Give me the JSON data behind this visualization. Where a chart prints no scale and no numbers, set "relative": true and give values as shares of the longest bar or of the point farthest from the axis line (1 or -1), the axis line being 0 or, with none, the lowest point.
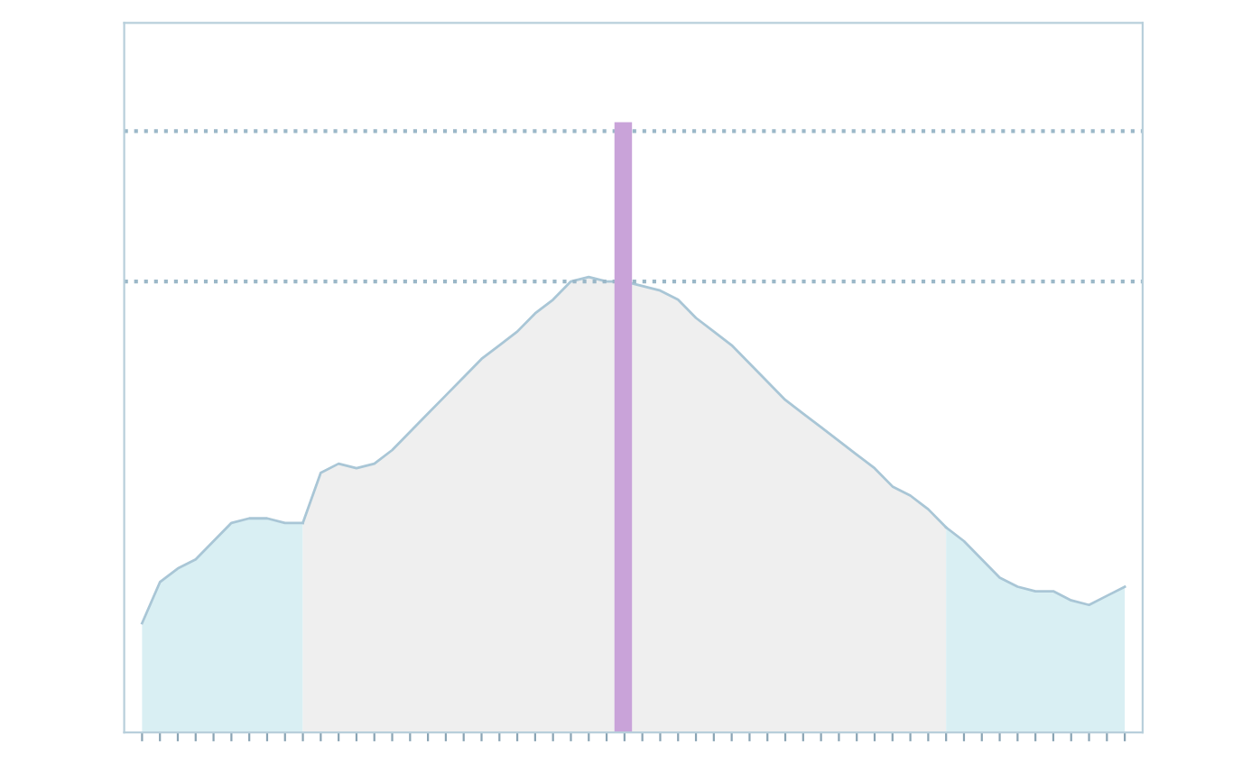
{
  "chart_data": {
    "type": "area",
    "relative": true,
    "categories": [
      null,
      null,
      null,
      null,
      null,
      null,
      null,
      null,
      null,
      null,
      null,
      null,
      null,
      null,
      null,
      null,
      null,
      null,
      null,
      null,
      null,
      null,
      null,
      null,
      null,
      null,
      null,
      null,
      null,
      null,
      null,
      null,
      null,
      null,
      null,
      null,
      null,
      null,
      null,
      null,
      null,
      null,
      null,
      null,
      null,
      null,
      null,
      null,
      null,
      null,
      null,
      null,
      null,
      null,
      null,
      null
    ],
    "series": [
      {
        "color": "#d9eff3",
        "values": [
          0.24,
          0.33,
          0.36,
          0.38,
          0.42,
          0.46,
          0.47,
          0.47,
          0.46,
          0.46,
          null,
          null,
          null,
          null,
          null,
          null,
          null,
          null,
          null,
          null,
          null,
          null,
          null,
          null,
          null,
          null,
          null,
          null,
          null,
          null,
          null,
          null,
          null,
          null,
          null,
          null,
          null,
          null,
          null,
          null,
          null,
          null,
          null,
          null,
          null,
          null,
          null,
          null,
          null,
          null,
          null,
          null,
          null,
          null,
          null,
          null
        ]
      },
      {
        "color": "#efefef",
        "values": [
          null,
          null,
          null,
          null,
          null,
          null,
          null,
          null,
          null,
          0.46,
          0.57,
          0.59,
          0.58,
          0.59,
          0.62,
          0.66,
          0.7,
          0.74,
          0.78,
          0.82,
          0.85,
          0.88,
          0.92,
          0.95,
          0.99,
          1.0,
          0.99,
          0.99,
          0.98,
          0.97,
          0.95,
          0.91,
          0.88,
          0.85,
          0.81,
          0.77,
          0.73,
          0.7,
          0.67,
          0.64,
          0.61,
          0.58,
          0.54,
          0.52,
          0.49,
          0.45,
          null,
          null,
          null,
          null,
          null,
          null,
          null,
          null,
          null,
          null
        ]
      },
      {
        "color": "#d9eff3",
        "values": [
          null,
          null,
          null,
          null,
          null,
          null,
          null,
          null,
          null,
          null,
          null,
          null,
          null,
          null,
          null,
          null,
          null,
          null,
          null,
          null,
          null,
          null,
          null,
          null,
          null,
          null,
          null,
          null,
          null,
          null,
          null,
          null,
          null,
          null,
          null,
          null,
          null,
          null,
          null,
          null,
          null,
          null,
          null,
          null,
          null,
          0.45,
          0.42,
          0.38,
          0.34,
          0.32,
          0.31,
          0.31,
          0.29,
          0.28,
          0.3,
          0.32
        ]
      }
    ],
    "ref_lines": [
      {
        "axis": "y",
        "value": 1.32,
        "color": "#9bb8c8",
        "line_style": "dotted"
      },
      {
        "axis": "y",
        "value": 0.99,
        "color": "#9bb8c8",
        "line_style": "dotted"
      }
    ],
    "legend": false,
    "grid": false
  }
}
